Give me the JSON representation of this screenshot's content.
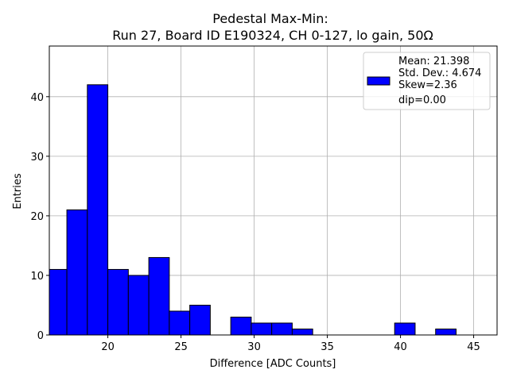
{
  "chart_data": {
    "type": "bar",
    "title": "Pedestal Max-Min:",
    "subtitle": "Run 27, Board ID E190324, CH 0-127, lo gain, 50Ω",
    "xlabel": "Difference [ADC Counts]",
    "ylabel": "Entries",
    "xlim": [
      16,
      46.6
    ],
    "ylim": [
      0,
      48.5
    ],
    "xticks": [
      20,
      25,
      30,
      35,
      40,
      45
    ],
    "yticks": [
      0,
      10,
      20,
      30,
      40
    ],
    "grid": true,
    "bar_color": "#0000ff",
    "bar_edge_color": "#000000",
    "bin_width": 1.4,
    "bin_start": 15.8,
    "bins": [
      {
        "left": 15.8,
        "value": 11
      },
      {
        "left": 17.2,
        "value": 21
      },
      {
        "left": 18.6,
        "value": 42
      },
      {
        "left": 20.0,
        "value": 11
      },
      {
        "left": 21.4,
        "value": 10
      },
      {
        "left": 22.8,
        "value": 13
      },
      {
        "left": 24.2,
        "value": 4
      },
      {
        "left": 25.6,
        "value": 5
      },
      {
        "left": 27.0,
        "value": 0
      },
      {
        "left": 28.4,
        "value": 3
      },
      {
        "left": 29.8,
        "value": 2
      },
      {
        "left": 31.2,
        "value": 2
      },
      {
        "left": 32.6,
        "value": 1
      },
      {
        "left": 34.0,
        "value": 0
      },
      {
        "left": 35.4,
        "value": 0
      },
      {
        "left": 36.8,
        "value": 0
      },
      {
        "left": 38.2,
        "value": 0
      },
      {
        "left": 39.6,
        "value": 2
      },
      {
        "left": 41.0,
        "value": 0
      },
      {
        "left": 42.4,
        "value": 1
      },
      {
        "left": 43.8,
        "value": 0
      }
    ],
    "legend": {
      "position": "top-right",
      "lines": [
        "Mean: 21.398",
        "Std. Dev.: 4.674",
        "Skew=2.36",
        "dip=0.00"
      ]
    }
  }
}
